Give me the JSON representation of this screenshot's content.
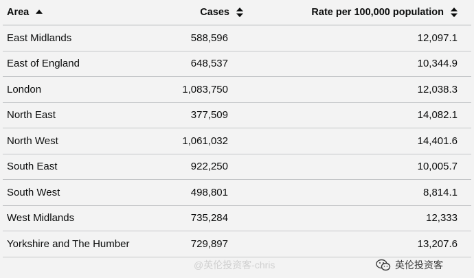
{
  "table": {
    "headers": {
      "area": "Area",
      "cases": "Cases",
      "rate": "Rate per 100,000 population"
    },
    "sort": {
      "column": "area",
      "direction": "ascending"
    },
    "rows": [
      {
        "area": "East Midlands",
        "cases": "588,596",
        "rate": "12,097.1"
      },
      {
        "area": "East of England",
        "cases": "648,537",
        "rate": "10,344.9"
      },
      {
        "area": "London",
        "cases": "1,083,750",
        "rate": "12,038.3"
      },
      {
        "area": "North East",
        "cases": "377,509",
        "rate": "14,082.1"
      },
      {
        "area": "North West",
        "cases": "1,061,032",
        "rate": "14,401.6"
      },
      {
        "area": "South East",
        "cases": "922,250",
        "rate": "10,005.7"
      },
      {
        "area": "South West",
        "cases": "498,801",
        "rate": "8,814.1"
      },
      {
        "area": "West Midlands",
        "cases": "735,284",
        "rate": "12,333"
      },
      {
        "area": "Yorkshire and The Humber",
        "cases": "729,897",
        "rate": "13,207.6"
      }
    ]
  },
  "watermarks": {
    "left": "@英伦投资客-chris",
    "right": "英伦投资客"
  },
  "colors": {
    "text": "#0b0c0c",
    "row_border": "#c4c6c8",
    "background": "#f3f3f3"
  }
}
